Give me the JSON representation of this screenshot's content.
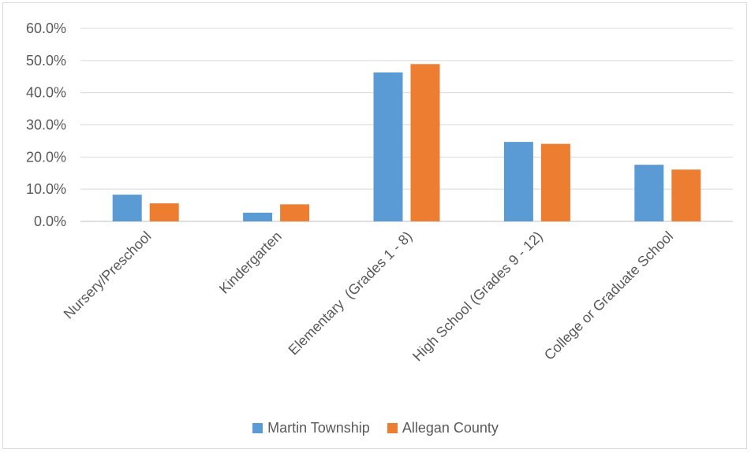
{
  "chart_data": {
    "type": "bar",
    "categories": [
      "Nursery/Preschool",
      "Kindergarten",
      "Elementary  (Grades 1 - 8)",
      "High School (Grades 9 - 12)",
      "College or Graduate School"
    ],
    "series": [
      {
        "name": "Martin Township",
        "color": "#5B9BD5",
        "values": [
          8.3,
          2.7,
          46.3,
          24.7,
          17.6
        ]
      },
      {
        "name": "Allegan County",
        "color": "#ED7D31",
        "values": [
          5.6,
          5.3,
          48.9,
          24.1,
          16.1
        ]
      }
    ],
    "yticks": [
      "0.0%",
      "10.0%",
      "20.0%",
      "30.0%",
      "40.0%",
      "50.0%",
      "60.0%"
    ],
    "ylim": [
      0,
      60
    ],
    "grid": true,
    "legend_position": "bottom",
    "title": "",
    "xlabel": "",
    "ylabel": ""
  }
}
